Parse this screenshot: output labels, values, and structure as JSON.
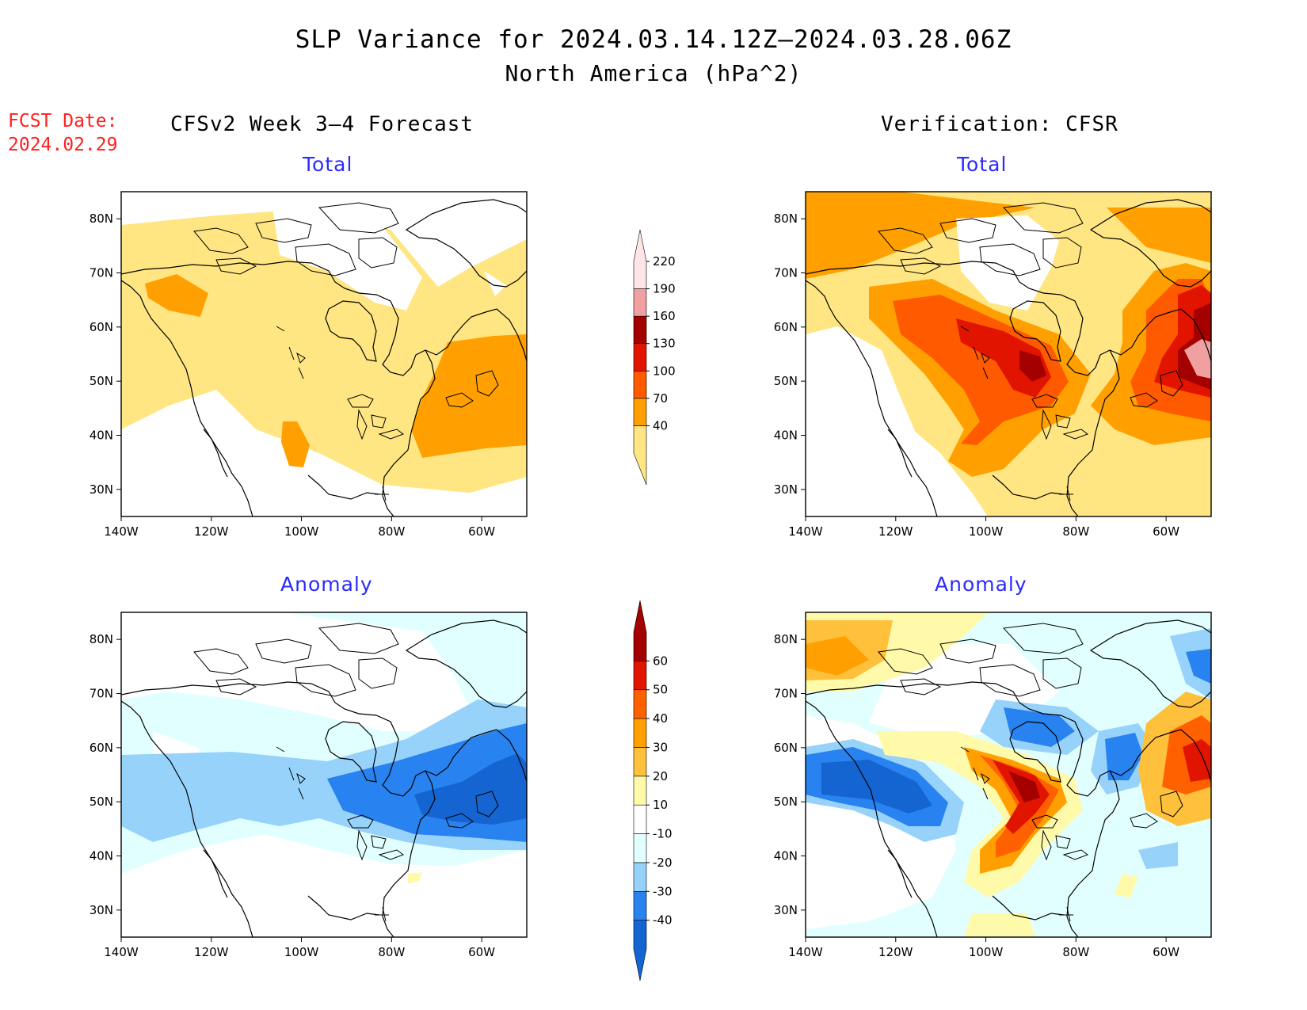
{
  "title": "SLP Variance for 2024.03.14.12Z–2024.03.28.06Z",
  "subtitle": "North America (hPa^2)",
  "fcst_label": "FCST Date:",
  "fcst_date": "2024.02.29",
  "col_left": "CFSv2 Week 3–4 Forecast",
  "col_right": "Verification: CFSR",
  "panels": [
    {
      "title": "Total",
      "kind": "total",
      "source": "forecast"
    },
    {
      "title": "Total",
      "kind": "total",
      "source": "verification"
    },
    {
      "title": "Anomaly",
      "kind": "anomaly",
      "source": "forecast"
    },
    {
      "title": "Anomaly",
      "kind": "anomaly",
      "source": "verification"
    }
  ],
  "lon_ticks": [
    "140W",
    "120W",
    "100W",
    "80W",
    "60W"
  ],
  "lat_ticks": [
    "80N",
    "70N",
    "60N",
    "50N",
    "40N",
    "30N"
  ],
  "map_extent": {
    "lon": [
      -140,
      -50
    ],
    "lat": [
      25,
      85
    ]
  },
  "total_colorbar": {
    "levels": [
      "40",
      "70",
      "100",
      "130",
      "160",
      "190",
      "220"
    ],
    "colors": [
      "#ffe682",
      "#ffa000",
      "#ff5a00",
      "#e11400",
      "#a50000",
      "#f0a0a0",
      "#ffe6e6"
    ]
  },
  "anomaly_colorbar": {
    "levels": [
      "-40",
      "-30",
      "-20",
      "-10",
      "10",
      "20",
      "30",
      "40",
      "50",
      "60"
    ],
    "colors": [
      "#1464d2",
      "#2882f0",
      "#96d2fa",
      "#e1ffff",
      "#ffffff",
      "#fffaaa",
      "#ffc03c",
      "#ffa000",
      "#ff6000",
      "#e11400",
      "#a50000"
    ]
  }
}
